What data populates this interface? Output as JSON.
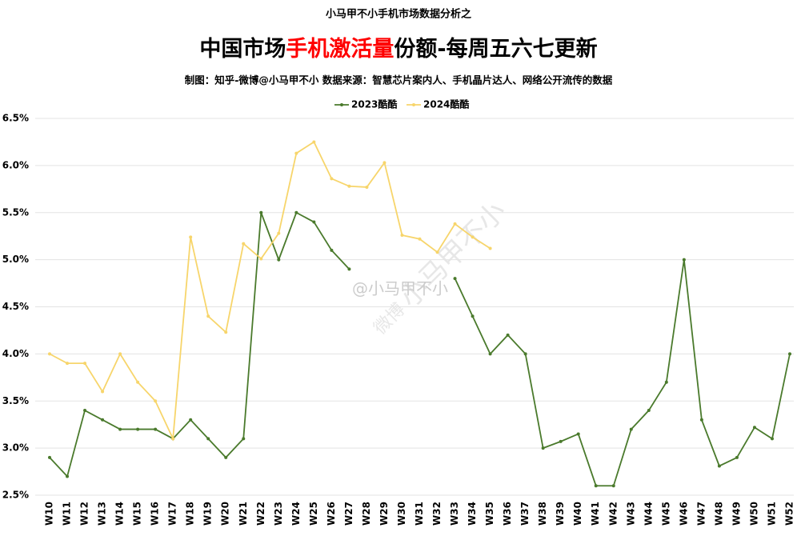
{
  "chart_data": {
    "type": "line",
    "supertitle": "小马甲不小手机市场数据分析之",
    "title": [
      "中国市场",
      "手机激活量",
      "份额-每周五六七更新"
    ],
    "title_colors": [
      "#000000",
      "#ff0000",
      "#000000"
    ],
    "subtitle": "制图：知乎-微博@小马甲不小  数据来源：智慧芯片案内人、手机晶片达人、网络公开流传的数据",
    "watermark": [
      "微博",
      "@小马甲不小",
      "小马甲不小"
    ],
    "categories": [
      "W10",
      "W11",
      "W12",
      "W13",
      "W14",
      "W15",
      "W16",
      "W17",
      "W18",
      "W19",
      "W20",
      "W21",
      "W22",
      "W23",
      "W24",
      "W25",
      "W26",
      "W27",
      "W28",
      "W29",
      "W30",
      "W31",
      "W32",
      "W33",
      "W34",
      "W35",
      "W36",
      "W37",
      "W38",
      "W39",
      "W40",
      "W41",
      "W42",
      "W43",
      "W44",
      "W45",
      "W46",
      "W47",
      "W48",
      "W49",
      "W50",
      "W51",
      "W52"
    ],
    "series": [
      {
        "name": "2023酷酷",
        "color": "#4a7a2c",
        "values": [
          2.9,
          2.7,
          3.4,
          3.3,
          3.2,
          3.2,
          3.2,
          3.1,
          3.3,
          3.1,
          2.9,
          3.1,
          5.5,
          5.0,
          5.5,
          5.4,
          5.1,
          4.9,
          null,
          null,
          null,
          null,
          null,
          4.8,
          4.4,
          4.0,
          4.2,
          4.0,
          3.0,
          3.07,
          3.15,
          2.6,
          2.6,
          3.2,
          3.4,
          3.7,
          5.0,
          3.3,
          2.81,
          2.9,
          3.22,
          3.1,
          4.0
        ]
      },
      {
        "name": "2024酷酷",
        "color": "#f7d56b",
        "values": [
          4.0,
          3.9,
          3.9,
          3.6,
          4.0,
          3.7,
          3.5,
          3.1,
          5.24,
          4.4,
          4.23,
          5.17,
          5.01,
          5.28,
          6.13,
          6.25,
          5.86,
          5.78,
          5.77,
          6.03,
          5.26,
          5.22,
          5.08,
          5.38,
          5.24,
          5.12,
          null,
          null,
          null,
          null,
          null,
          null,
          null,
          null,
          null,
          null,
          null,
          null,
          null,
          null,
          null,
          null,
          null
        ]
      }
    ],
    "ylim": [
      2.5,
      6.5
    ],
    "yticks": [
      {
        "value": 2.5,
        "label": "2.5%"
      },
      {
        "value": 3.0,
        "label": "3.0%"
      },
      {
        "value": 3.5,
        "label": "3.5%"
      },
      {
        "value": 4.0,
        "label": "4.0%"
      },
      {
        "value": 4.5,
        "label": "4.5%"
      },
      {
        "value": 5.0,
        "label": "5.0%"
      },
      {
        "value": 5.5,
        "label": "5.5%"
      },
      {
        "value": 6.0,
        "label": "6.0%"
      },
      {
        "value": 6.5,
        "label": "6.5%"
      }
    ],
    "grid": true,
    "legend": "top"
  }
}
